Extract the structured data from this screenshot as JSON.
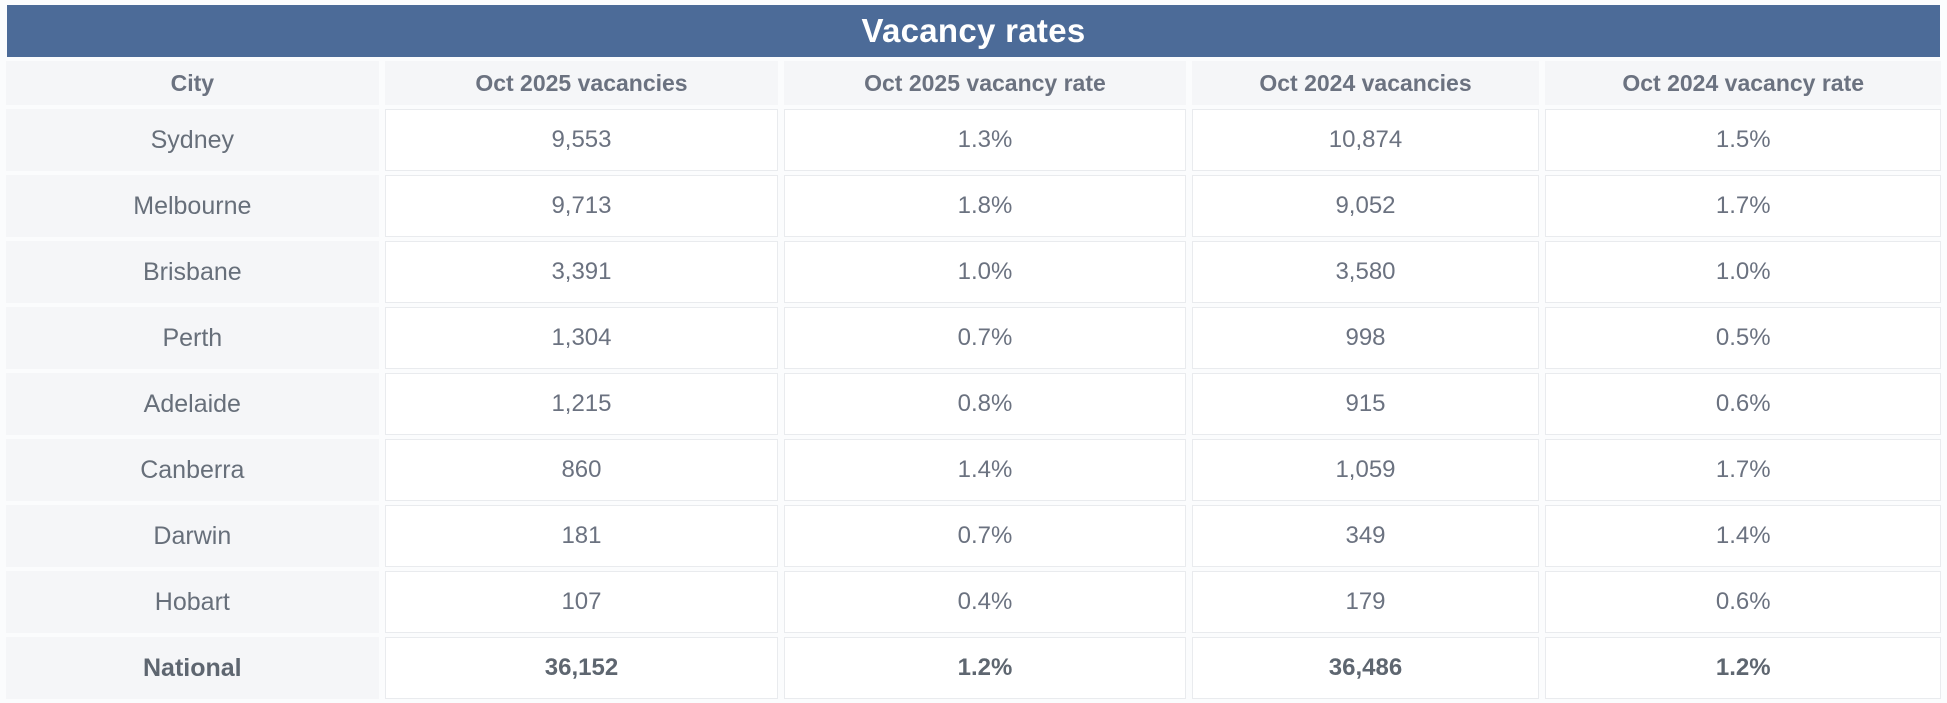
{
  "title": "Vacancy rates",
  "colors": {
    "title_bar_bg": "#4c6b98",
    "title_text": "#ffffff",
    "header_cell_bg": "#f5f6f8",
    "body_text": "#6b7280",
    "cell_border": "#e9ebee",
    "value_cell_bg": "#ffffff"
  },
  "table": {
    "columns": [
      "City",
      "Oct 2025 vacancies",
      "Oct 2025 vacancy rate",
      "Oct 2024 vacancies",
      "Oct 2024 vacancy rate"
    ],
    "rows": [
      {
        "city": "Sydney",
        "values": [
          "9,553",
          "1.3%",
          "10,874",
          "1.5%"
        ],
        "bold": false
      },
      {
        "city": "Melbourne",
        "values": [
          "9,713",
          "1.8%",
          "9,052",
          "1.7%"
        ],
        "bold": false
      },
      {
        "city": "Brisbane",
        "values": [
          "3,391",
          "1.0%",
          "3,580",
          "1.0%"
        ],
        "bold": false
      },
      {
        "city": "Perth",
        "values": [
          "1,304",
          "0.7%",
          "998",
          "0.5%"
        ],
        "bold": false
      },
      {
        "city": "Adelaide",
        "values": [
          "1,215",
          "0.8%",
          "915",
          "0.6%"
        ],
        "bold": false
      },
      {
        "city": "Canberra",
        "values": [
          "860",
          "1.4%",
          "1,059",
          "1.7%"
        ],
        "bold": false
      },
      {
        "city": "Darwin",
        "values": [
          "181",
          "0.7%",
          "349",
          "1.4%"
        ],
        "bold": false
      },
      {
        "city": "Hobart",
        "values": [
          "107",
          "0.4%",
          "179",
          "0.6%"
        ],
        "bold": false
      },
      {
        "city": "National",
        "values": [
          "36,152",
          "1.2%",
          "36,486",
          "1.2%"
        ],
        "bold": true
      }
    ]
  },
  "chart_data": {
    "type": "table",
    "title": "Vacancy rates",
    "columns": [
      "City",
      "Oct 2025 vacancies",
      "Oct 2025 vacancy rate",
      "Oct 2024 vacancies",
      "Oct 2024 vacancy rate"
    ],
    "rows": [
      [
        "Sydney",
        9553,
        "1.3%",
        10874,
        "1.5%"
      ],
      [
        "Melbourne",
        9713,
        "1.8%",
        9052,
        "1.7%"
      ],
      [
        "Brisbane",
        3391,
        "1.0%",
        3580,
        "1.0%"
      ],
      [
        "Perth",
        1304,
        "0.7%",
        998,
        "0.5%"
      ],
      [
        "Adelaide",
        1215,
        "0.8%",
        915,
        "0.6%"
      ],
      [
        "Canberra",
        860,
        "1.4%",
        1059,
        "1.7%"
      ],
      [
        "Darwin",
        181,
        "0.7%",
        349,
        "1.4%"
      ],
      [
        "Hobart",
        107,
        "0.4%",
        179,
        "0.6%"
      ],
      [
        "National",
        36152,
        "1.2%",
        36486,
        "1.2%"
      ]
    ]
  }
}
